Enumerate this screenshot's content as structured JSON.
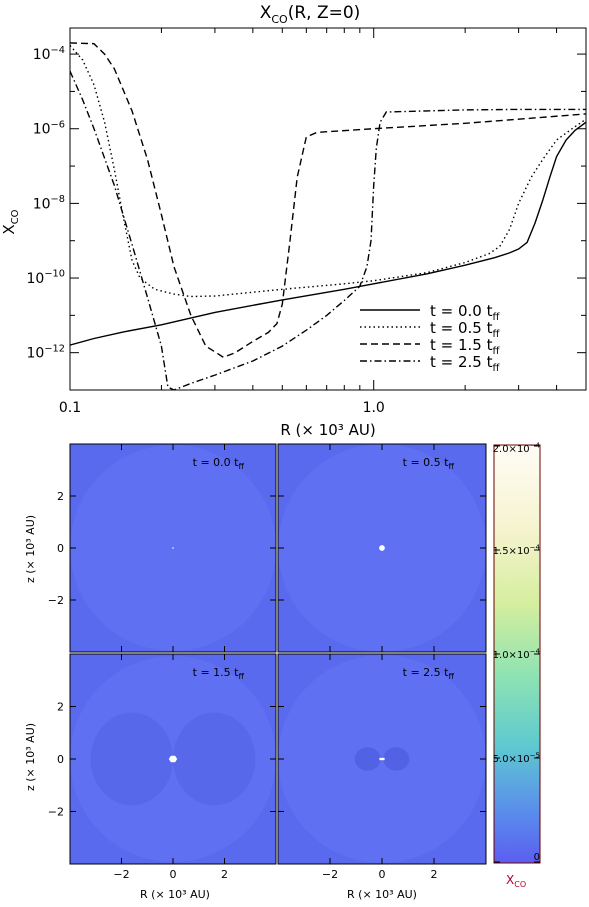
{
  "chart_data": [
    {
      "type": "line",
      "title": "X_CO(R, Z=0)",
      "title_main": "X",
      "title_sub": "CO",
      "title_rest": "(R, Z=0)",
      "xlabel": "R  (× 10³ AU)",
      "ylabel_main": "X",
      "ylabel_sub": "CO",
      "x_scale": "log",
      "y_scale": "log",
      "xlim": [
        0.1,
        5.0
      ],
      "ylim": [
        1e-13,
        0.0005
      ],
      "x_ticks": [
        {
          "value": 0.1,
          "label": "0.1"
        },
        {
          "value": 1.0,
          "label": "1.0"
        }
      ],
      "y_ticks": [
        {
          "value": 0.0001,
          "base": "10",
          "exp": "−4"
        },
        {
          "value": 1e-06,
          "base": "10",
          "exp": "−6"
        },
        {
          "value": 1e-08,
          "base": "10",
          "exp": "−8"
        },
        {
          "value": 1e-10,
          "base": "10",
          "exp": "−10"
        },
        {
          "value": 1e-12,
          "base": "10",
          "exp": "−12"
        }
      ],
      "legend_position": "lower-right",
      "series": [
        {
          "name": "t = 0.0 t_ff",
          "label_main": "t  =  0.0  t",
          "label_sub": "ff",
          "dash": "",
          "points": [
            [
              0.1,
              1.6e-12
            ],
            [
              0.12,
              2.4e-12
            ],
            [
              0.15,
              3.6e-12
            ],
            [
              0.2,
              5.6e-12
            ],
            [
              0.3,
              1.2e-11
            ],
            [
              0.5,
              2.6e-11
            ],
            [
              0.8,
              5e-11
            ],
            [
              1.0,
              7e-11
            ],
            [
              1.5,
              1.3e-10
            ],
            [
              2.0,
              2.2e-10
            ],
            [
              2.5,
              3.5e-10
            ],
            [
              2.8,
              4.7e-10
            ],
            [
              3.0,
              6e-10
            ],
            [
              3.2,
              9e-10
            ],
            [
              3.4,
              3e-09
            ],
            [
              3.6,
              1.2e-08
            ],
            [
              3.8,
              5e-08
            ],
            [
              4.0,
              1.8e-07
            ],
            [
              4.3,
              5e-07
            ],
            [
              4.6,
              9e-07
            ],
            [
              5.0,
              1.5e-06
            ]
          ]
        },
        {
          "name": "t = 0.5 t_ff",
          "label_main": "t  =  0.5  t",
          "label_sub": "ff",
          "dash": "1.5,3",
          "points": [
            [
              0.1,
              0.00017
            ],
            [
              0.11,
              7e-05
            ],
            [
              0.12,
              1.5e-05
            ],
            [
              0.13,
              1.5e-06
            ],
            [
              0.14,
              8e-08
            ],
            [
              0.15,
              4e-09
            ],
            [
              0.16,
              3e-10
            ],
            [
              0.17,
              1e-10
            ],
            [
              0.19,
              5e-11
            ],
            [
              0.22,
              3.7e-11
            ],
            [
              0.25,
              3.2e-11
            ],
            [
              0.3,
              3.3e-11
            ],
            [
              0.5,
              5e-11
            ],
            [
              0.8,
              7e-11
            ],
            [
              1.0,
              8.5e-11
            ],
            [
              1.5,
              1.4e-10
            ],
            [
              2.0,
              2.6e-10
            ],
            [
              2.4,
              4.5e-10
            ],
            [
              2.6,
              7e-10
            ],
            [
              2.8,
              2e-09
            ],
            [
              3.0,
              1e-08
            ],
            [
              3.3,
              5e-08
            ],
            [
              3.6,
              1.5e-07
            ],
            [
              4.0,
              5e-07
            ],
            [
              4.5,
              1e-06
            ],
            [
              5.0,
              1.8e-06
            ]
          ]
        },
        {
          "name": "t = 1.5 t_ff",
          "label_main": "t  =  1.5  t",
          "label_sub": "ff",
          "dash": "7,4",
          "points": [
            [
              0.1,
              0.0002
            ],
            [
              0.12,
              0.00019
            ],
            [
              0.13,
              0.0001
            ],
            [
              0.14,
              4e-05
            ],
            [
              0.16,
              3e-06
            ],
            [
              0.18,
              1.5e-07
            ],
            [
              0.2,
              5e-09
            ],
            [
              0.22,
              2e-10
            ],
            [
              0.25,
              1e-11
            ],
            [
              0.28,
              1.5e-12
            ],
            [
              0.32,
              7.5e-13
            ],
            [
              0.35,
              1e-12
            ],
            [
              0.4,
              2e-12
            ],
            [
              0.45,
              3.5e-12
            ],
            [
              0.48,
              6e-12
            ],
            [
              0.5,
              2e-11
            ],
            [
              0.53,
              1e-09
            ],
            [
              0.56,
              5e-08
            ],
            [
              0.6,
              6e-07
            ],
            [
              0.65,
              8e-07
            ],
            [
              1.0,
              1e-06
            ],
            [
              2.0,
              1.4e-06
            ],
            [
              3.0,
              1.8e-06
            ],
            [
              5.0,
              2.5e-06
            ]
          ]
        },
        {
          "name": "t = 2.5 t_ff",
          "label_main": "t  =  2.5  t",
          "label_sub": "ff",
          "dash": "7,3,1.5,3",
          "points": [
            [
              0.1,
              3.5e-05
            ],
            [
              0.11,
              6e-06
            ],
            [
              0.12,
              1e-06
            ],
            [
              0.14,
              3e-08
            ],
            [
              0.16,
              8e-10
            ],
            [
              0.18,
              3e-11
            ],
            [
              0.2,
              1.5e-12
            ],
            [
              0.21,
              1.2e-13
            ],
            [
              0.22,
              1e-13
            ],
            [
              0.25,
              1.5e-13
            ],
            [
              0.3,
              2.5e-13
            ],
            [
              0.4,
              6e-13
            ],
            [
              0.5,
              1.5e-12
            ],
            [
              0.6,
              4e-12
            ],
            [
              0.7,
              1e-11
            ],
            [
              0.8,
              2.5e-11
            ],
            [
              0.9,
              6e-11
            ],
            [
              0.95,
              2e-10
            ],
            [
              0.98,
              1e-09
            ],
            [
              1.0,
              3e-08
            ],
            [
              1.02,
              3e-07
            ],
            [
              1.05,
              1.5e-06
            ],
            [
              1.1,
              2.8e-06
            ],
            [
              1.5,
              3e-06
            ],
            [
              2.0,
              3.2e-06
            ],
            [
              3.0,
              3.3e-06
            ],
            [
              5.0,
              3.3e-06
            ]
          ]
        }
      ]
    },
    {
      "type": "heatmap",
      "xlabel": "R  (× 10³ AU)",
      "ylabel": "z  (× 10³ AU)",
      "xlim": [
        -4,
        4
      ],
      "ylim": [
        -4,
        4
      ],
      "axis_ticks": [
        {
          "value": -2,
          "label": "−2"
        },
        {
          "value": 0,
          "label": "0"
        },
        {
          "value": 2,
          "label": "2"
        }
      ],
      "colorbar": {
        "label_main": "X",
        "label_sub": "CO",
        "range": [
          0,
          0.0002
        ],
        "ticks": [
          {
            "value": 0.0002,
            "label": "2.0×10",
            "exp": "−4"
          },
          {
            "value": 0.00015,
            "label": "1.5×10",
            "exp": "−4"
          },
          {
            "value": 0.0001,
            "label": "1.0×10",
            "exp": "−4"
          },
          {
            "value": 5e-05,
            "label": "5.0×10",
            "exp": "−5"
          },
          {
            "value": 0,
            "label": "0",
            "exp": ""
          }
        ]
      },
      "panels": [
        {
          "label_main": "t = 0.0 t",
          "label_sub": "ff",
          "hole_radius": 0.03
        },
        {
          "label_main": "t = 0.5 t",
          "label_sub": "ff",
          "hole_radius": 0.11
        },
        {
          "label_main": "t = 1.5 t",
          "label_sub": "ff",
          "hole_radius": 0.15
        },
        {
          "label_main": "t = 2.5 t",
          "label_sub": "ff",
          "hole_radius": 0.1
        }
      ]
    }
  ],
  "colors": {
    "map_background": "#5f70f2",
    "map_outer": "#5a6aee",
    "map_structure": "#5868ea",
    "line": "#000000"
  }
}
